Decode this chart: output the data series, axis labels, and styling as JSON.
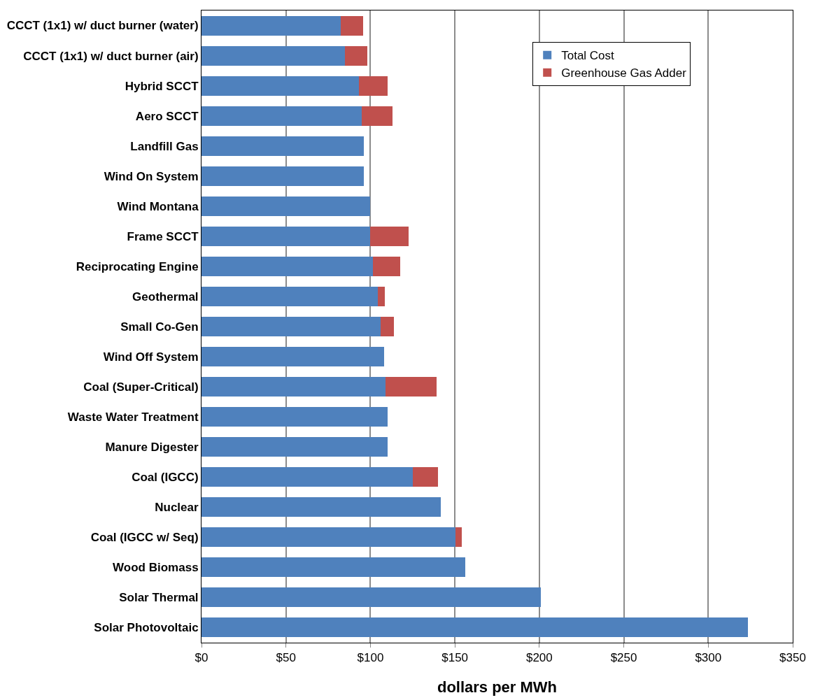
{
  "chart_data": {
    "type": "bar",
    "orientation": "horizontal",
    "stacked": true,
    "xlabel": "dollars per MWh",
    "categories": [
      "CCCT (1x1) w/ duct burner (water)",
      "CCCT (1x1) w/ duct burner (air)",
      "Hybrid SCCT",
      "Aero SCCT",
      "Landfill Gas",
      "Wind On System",
      "Wind Montana",
      "Frame SCCT",
      "Reciprocating Engine",
      "Geothermal",
      "Small Co-Gen",
      "Wind Off System",
      "Coal (Super-Critical)",
      "Waste Water Treatment",
      "Manure Digester",
      "Coal (IGCC)",
      "Nuclear",
      "Coal (IGCC w/ Seq)",
      "Wood Biomass",
      "Solar Thermal",
      "Solar Photovoltaic"
    ],
    "series": [
      {
        "name": "Total Cost",
        "color": "#4f81bd",
        "values": [
          82.5,
          85,
          93,
          95,
          96,
          96,
          100,
          100,
          101.5,
          104.5,
          106,
          108,
          109,
          110,
          110,
          125,
          141.5,
          150.5,
          156,
          201,
          323.5
        ]
      },
      {
        "name": "Greenhouse Gas Adder",
        "color": "#c0504d",
        "values": [
          13,
          13,
          17,
          18,
          null,
          null,
          null,
          22.5,
          16,
          4,
          8,
          null,
          30,
          null,
          null,
          15,
          null,
          3.5,
          null,
          null,
          null
        ]
      }
    ],
    "xlim": [
      0,
      350
    ],
    "xticks": [
      {
        "value": 0,
        "label": "$0"
      },
      {
        "value": 50,
        "label": "$50"
      },
      {
        "value": 100,
        "label": "$100"
      },
      {
        "value": 150,
        "label": "$150"
      },
      {
        "value": 200,
        "label": "$200"
      },
      {
        "value": 250,
        "label": "$250"
      },
      {
        "value": 300,
        "label": "$300"
      },
      {
        "value": 350,
        "label": "$350"
      }
    ],
    "grid": "x",
    "legend": "top right"
  }
}
